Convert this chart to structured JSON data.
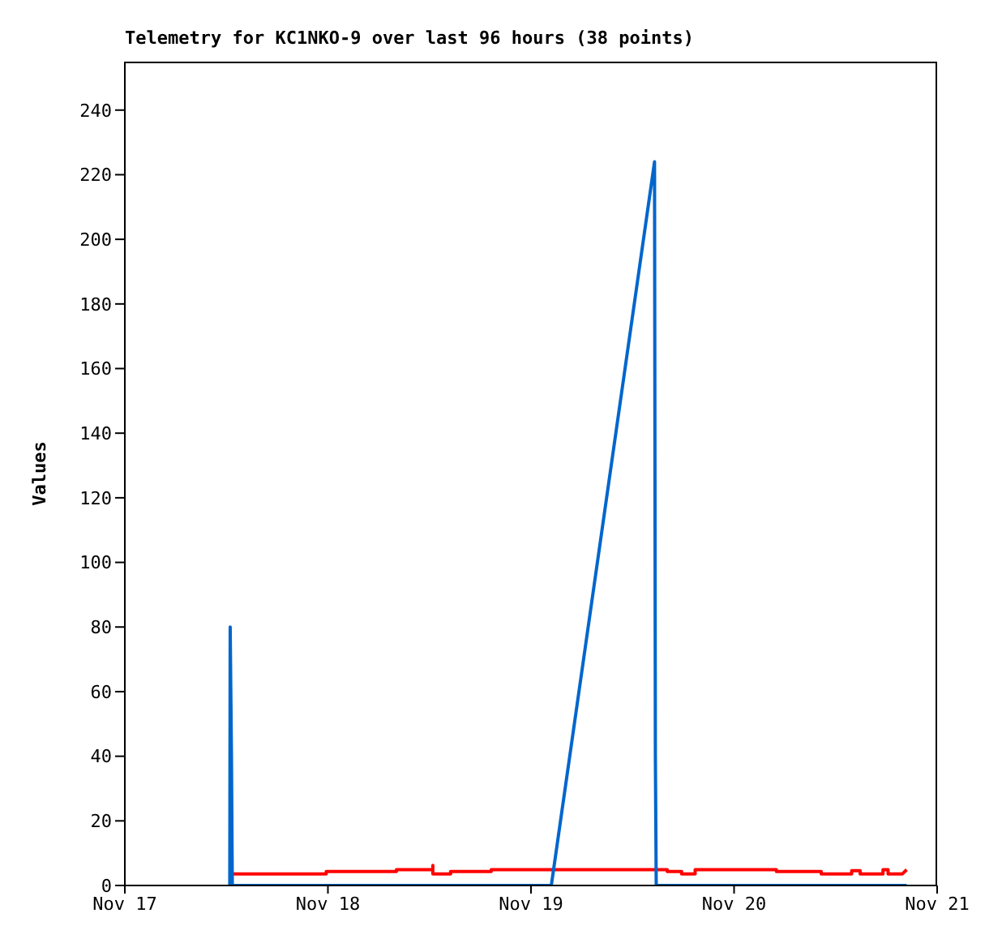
{
  "chart_data": {
    "type": "line",
    "title": "Telemetry for KC1NKO-9 over last 96 hours (38 points)",
    "ylabel": "Values",
    "xlim": [
      "--11-17",
      "--11-21"
    ],
    "xticks": [
      {
        "value": "--11-17",
        "label": "Nov 17"
      },
      {
        "value": "--11-18",
        "label": "Nov 18"
      },
      {
        "value": "--11-19",
        "label": "Nov 19"
      },
      {
        "value": "--11-20",
        "label": "Nov 20"
      },
      {
        "value": "--11-21",
        "label": "Nov 21"
      }
    ],
    "ylim": [
      0,
      255
    ],
    "yticks": [
      0,
      20,
      40,
      60,
      80,
      100,
      120,
      140,
      160,
      180,
      200,
      220,
      240
    ],
    "marker": "none",
    "line_style": "solid",
    "series": [
      {
        "color": "#ff0000",
        "x": [
          "--11-17T12:48",
          "--11-17T23:48",
          "--11-17T23:48",
          "--11-18T08:06",
          "--11-18T08:06",
          "--11-18T12:24",
          "--11-18T12:24",
          "--11-18T12:24",
          "--11-18T14:30",
          "--11-18T14:30",
          "--11-18T19:18",
          "--11-18T19:18",
          "--11-19T16:06",
          "--11-19T16:06",
          "--11-19T17:48",
          "--11-19T17:48",
          "--11-19T19:24",
          "--11-19T19:24",
          "--11-20T05:00",
          "--11-20T05:00",
          "--11-20T10:18",
          "--11-20T10:18",
          "--11-20T13:54",
          "--11-20T13:54",
          "--11-20T14:54",
          "--11-20T14:54",
          "--11-20T17:36",
          "--11-20T17:36",
          "--11-20T18:12",
          "--11-20T18:12",
          "--11-20T19:54",
          "--11-20T20:24"
        ],
        "values": [
          3.6,
          3.6,
          4.3,
          4.3,
          4.9,
          4.9,
          6.2,
          3.6,
          3.6,
          4.3,
          4.3,
          4.9,
          4.9,
          4.3,
          4.3,
          3.6,
          3.6,
          4.9,
          4.9,
          4.3,
          4.3,
          3.6,
          3.6,
          4.6,
          4.6,
          3.6,
          3.6,
          4.9,
          4.9,
          3.6,
          3.6,
          4.9
        ]
      },
      {
        "color": "#0066cc",
        "x": [
          "--11-17T12:24",
          "--11-17T12:27",
          "--11-17T12:36",
          "--11-17T12:42",
          "--11-19T02:24",
          "--11-19T14:36",
          "--11-19T14:42",
          "--11-19T14:48",
          "--11-20T20:24"
        ],
        "values": [
          0,
          80,
          40,
          0,
          0,
          224,
          40,
          0,
          0
        ]
      }
    ]
  }
}
